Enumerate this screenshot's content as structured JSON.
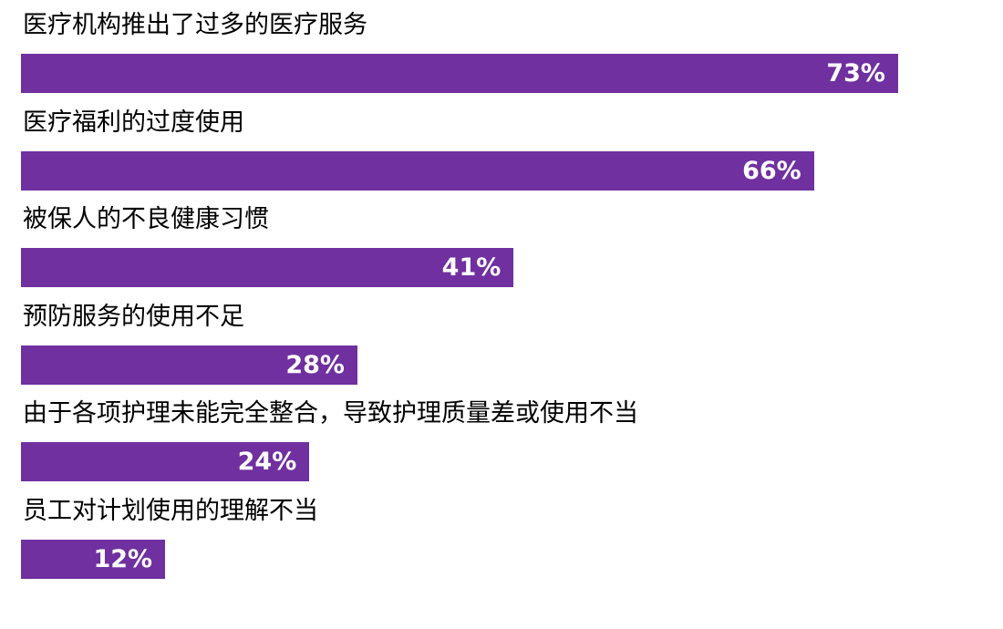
{
  "chart_data": {
    "type": "bar",
    "orientation": "horizontal",
    "categories": [
      "医疗机构推出了过多的医疗服务",
      "医疗福利的过度使用",
      "被保人的不良健康习惯",
      "预防服务的使用不足",
      "由于各项护理未能完全整合，导致护理质量差或使用不当",
      "员工对计划使用的理解不当"
    ],
    "values": [
      73,
      66,
      41,
      28,
      24,
      12
    ],
    "value_labels": [
      "73%",
      "66%",
      "41%",
      "28%",
      "24%",
      "12%"
    ],
    "unit": "%",
    "xlim": [
      0,
      100
    ],
    "grid": false,
    "legend": "none",
    "bar_color": "#7030a0"
  }
}
